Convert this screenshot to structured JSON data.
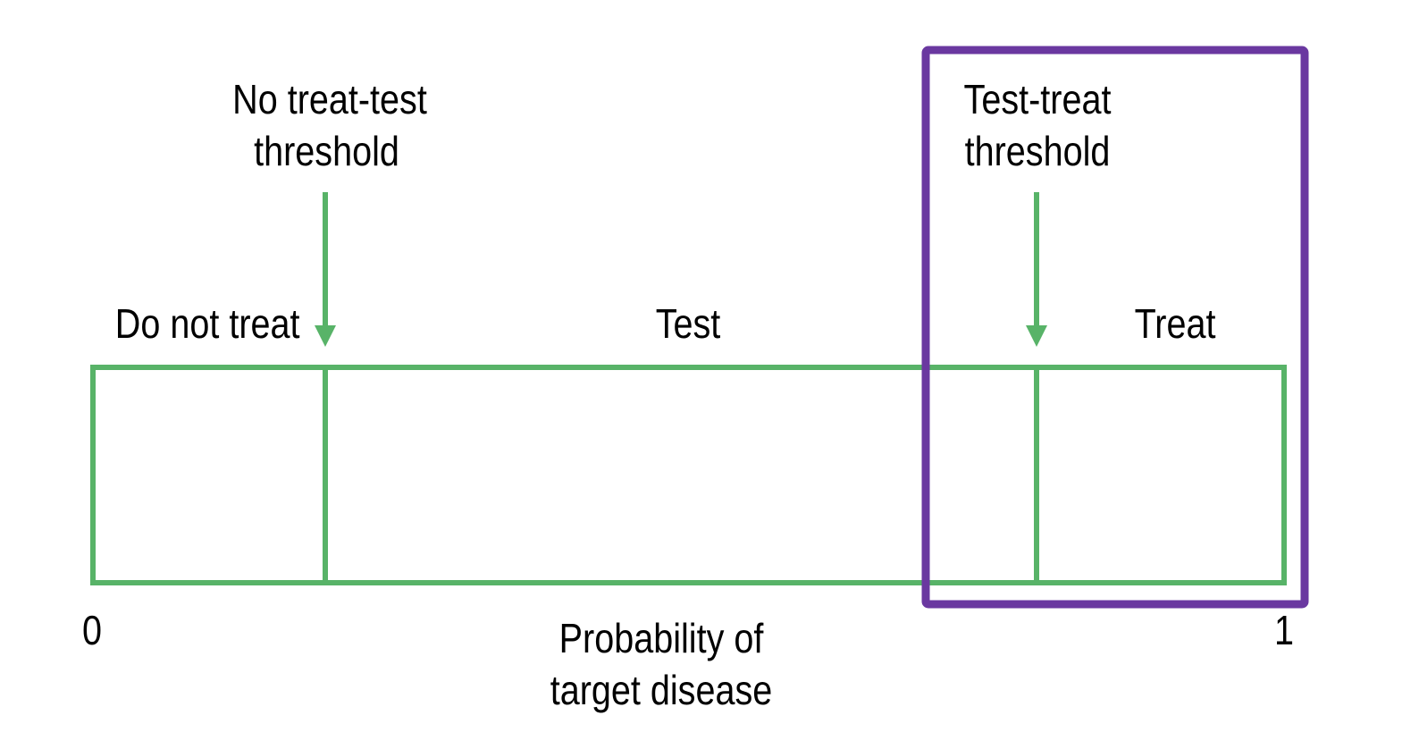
{
  "colors": {
    "scale_stroke": "#58b368",
    "highlight_stroke": "#6a38a0",
    "text": "#000000",
    "background": "#ffffff"
  },
  "thresholds": {
    "no_treat_test": {
      "label_line1": "No treat-test",
      "label_line2": "threshold"
    },
    "test_treat": {
      "label_line1": "Test-treat",
      "label_line2": "threshold"
    }
  },
  "zones": {
    "do_not_treat": "Do not treat",
    "test": "Test",
    "treat": "Treat"
  },
  "axis": {
    "min_label": "0",
    "max_label": "1",
    "title_line1": "Probability of",
    "title_line2": "target disease"
  }
}
